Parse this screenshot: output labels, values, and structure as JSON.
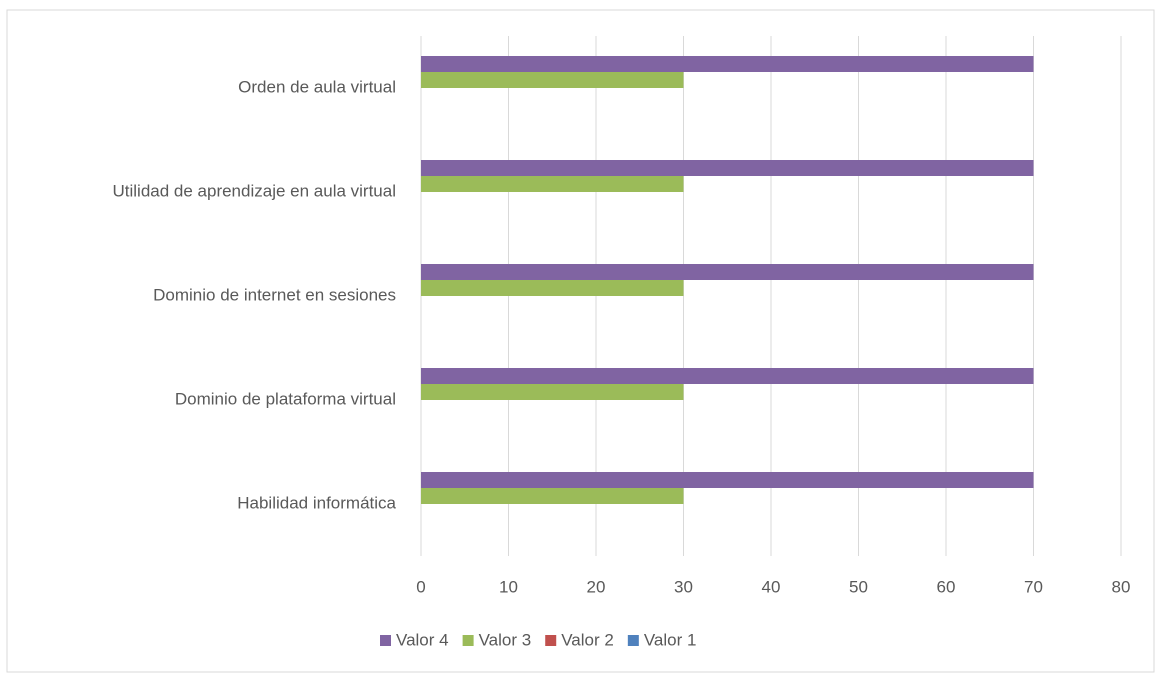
{
  "chart_data": {
    "type": "hbar",
    "categories": [
      "Habilidad informática",
      "Dominio de plataforma virtual",
      "Dominio de internet en sesiones",
      "Utilidad de aprendizaje en aula virtual",
      "Orden de aula virtual"
    ],
    "series": [
      {
        "name": "Valor 1",
        "color": "#4f81bd",
        "values": [
          0,
          0,
          0,
          0,
          0
        ]
      },
      {
        "name": "Valor 2",
        "color": "#c0504d",
        "values": [
          0,
          0,
          0,
          0,
          0
        ]
      },
      {
        "name": "Valor 3",
        "color": "#9bbb59",
        "values": [
          30,
          30,
          30,
          30,
          30
        ]
      },
      {
        "name": "Valor 4",
        "color": "#8064a2",
        "values": [
          70,
          70,
          70,
          70,
          70
        ]
      }
    ],
    "xlim": [
      0,
      80
    ],
    "xticks": [
      0,
      10,
      20,
      30,
      40,
      50,
      60,
      70,
      80
    ],
    "grid": true,
    "legend": "bottom"
  }
}
